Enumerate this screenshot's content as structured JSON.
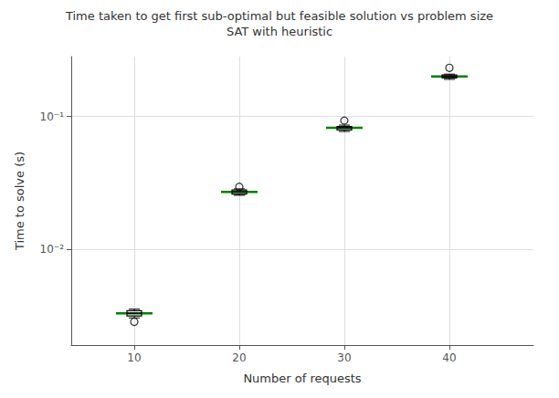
{
  "chart_data": {
    "type": "boxplot",
    "title": "Time taken to get first sub-optimal but feasible solution vs problem size",
    "subtitle": "SAT with heuristic",
    "xlabel": "Number of requests",
    "ylabel": "Time to solve (s)",
    "x": [
      10,
      20,
      30,
      40
    ],
    "whisker_low": [
      0.00305,
      0.0255,
      0.077,
      0.19
    ],
    "q1": [
      0.00315,
      0.026,
      0.079,
      0.195
    ],
    "median": [
      0.0033,
      0.027,
      0.082,
      0.2
    ],
    "q3": [
      0.00345,
      0.028,
      0.084,
      0.205
    ],
    "whisker_high": [
      0.00355,
      0.0285,
      0.086,
      0.208
    ],
    "outliers": [
      {
        "x": 10,
        "y": 0.00285
      },
      {
        "x": 20,
        "y": 0.0295
      },
      {
        "x": 30,
        "y": 0.093
      },
      {
        "x": 40,
        "y": 0.232
      }
    ],
    "color": "#008000",
    "log": "y",
    "grid": true,
    "xlim": [
      4,
      48
    ],
    "xticks": [
      10,
      20,
      30,
      40
    ],
    "ylim": [
      0.001905460717963248,
      0.28183829312644537
    ],
    "yticks": [
      {
        "value": 0.01,
        "label": "10⁻²"
      },
      {
        "value": 0.1,
        "label": "10⁻¹"
      }
    ]
  }
}
